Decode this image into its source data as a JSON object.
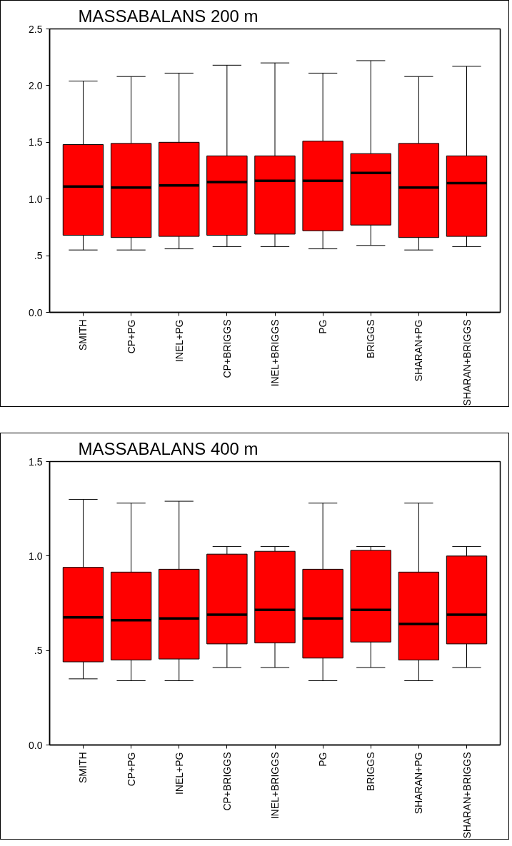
{
  "chart_data": [
    {
      "type": "box",
      "title": "MASSABALANS 200 m",
      "categories": [
        "SMITH",
        "CP+PG",
        "INEL+PG",
        "CP+BRIGGS",
        "INEL+BRIGGS",
        "PG",
        "BRIGGS",
        "SHARAN+PG",
        "SHARAN+BRIGGS"
      ],
      "series": [
        {
          "color": "#ff0000",
          "boxes": [
            {
              "low": 0.55,
              "q1": 0.68,
              "median": 1.11,
              "q3": 1.48,
              "high": 2.04
            },
            {
              "low": 0.55,
              "q1": 0.66,
              "median": 1.1,
              "q3": 1.49,
              "high": 2.08
            },
            {
              "low": 0.56,
              "q1": 0.67,
              "median": 1.12,
              "q3": 1.5,
              "high": 2.11
            },
            {
              "low": 0.58,
              "q1": 0.68,
              "median": 1.15,
              "q3": 1.38,
              "high": 2.18
            },
            {
              "low": 0.58,
              "q1": 0.69,
              "median": 1.16,
              "q3": 1.38,
              "high": 2.2
            },
            {
              "low": 0.56,
              "q1": 0.72,
              "median": 1.16,
              "q3": 1.51,
              "high": 2.11
            },
            {
              "low": 0.59,
              "q1": 0.77,
              "median": 1.23,
              "q3": 1.4,
              "high": 2.22
            },
            {
              "low": 0.55,
              "q1": 0.66,
              "median": 1.1,
              "q3": 1.49,
              "high": 2.08
            },
            {
              "low": 0.58,
              "q1": 0.67,
              "median": 1.14,
              "q3": 1.38,
              "high": 2.17
            }
          ]
        }
      ],
      "ylim": [
        0,
        2.5
      ],
      "yticks": [
        {
          "value": 0,
          "label": "0.0"
        },
        {
          "value": 0.5,
          "label": ".5"
        },
        {
          "value": 1,
          "label": "1.0"
        },
        {
          "value": 1.5,
          "label": "1.5"
        },
        {
          "value": 2,
          "label": "2.0"
        },
        {
          "value": 2.5,
          "label": "2.5"
        }
      ],
      "grid": false
    },
    {
      "type": "box",
      "title": "MASSABALANS 400 m",
      "categories": [
        "SMITH",
        "CP+PG",
        "INEL+PG",
        "CP+BRIGGS",
        "INEL+BRIGGS",
        "PG",
        "BRIGGS",
        "SHARAN+PG",
        "SHARAN+BRIGGS"
      ],
      "series": [
        {
          "color": "#ff0000",
          "boxes": [
            {
              "low": 0.35,
              "q1": 0.44,
              "median": 0.675,
              "q3": 0.94,
              "high": 1.3
            },
            {
              "low": 0.34,
              "q1": 0.45,
              "median": 0.66,
              "q3": 0.915,
              "high": 1.28
            },
            {
              "low": 0.34,
              "q1": 0.455,
              "median": 0.67,
              "q3": 0.93,
              "high": 1.29
            },
            {
              "low": 0.41,
              "q1": 0.535,
              "median": 0.69,
              "q3": 1.01,
              "high": 1.05
            },
            {
              "low": 0.41,
              "q1": 0.54,
              "median": 0.715,
              "q3": 1.025,
              "high": 1.05
            },
            {
              "low": 0.34,
              "q1": 0.46,
              "median": 0.67,
              "q3": 0.93,
              "high": 1.28
            },
            {
              "low": 0.41,
              "q1": 0.545,
              "median": 0.715,
              "q3": 1.03,
              "high": 1.05
            },
            {
              "low": 0.34,
              "q1": 0.45,
              "median": 0.64,
              "q3": 0.915,
              "high": 1.28
            },
            {
              "low": 0.41,
              "q1": 0.535,
              "median": 0.69,
              "q3": 1.0,
              "high": 1.05
            }
          ]
        }
      ],
      "ylim": [
        0,
        1.5
      ],
      "yticks": [
        {
          "value": 0,
          "label": "0.0"
        },
        {
          "value": 0.5,
          "label": ".5"
        },
        {
          "value": 1,
          "label": "1.0"
        },
        {
          "value": 1.5,
          "label": "1.5"
        }
      ],
      "grid": false
    }
  ]
}
